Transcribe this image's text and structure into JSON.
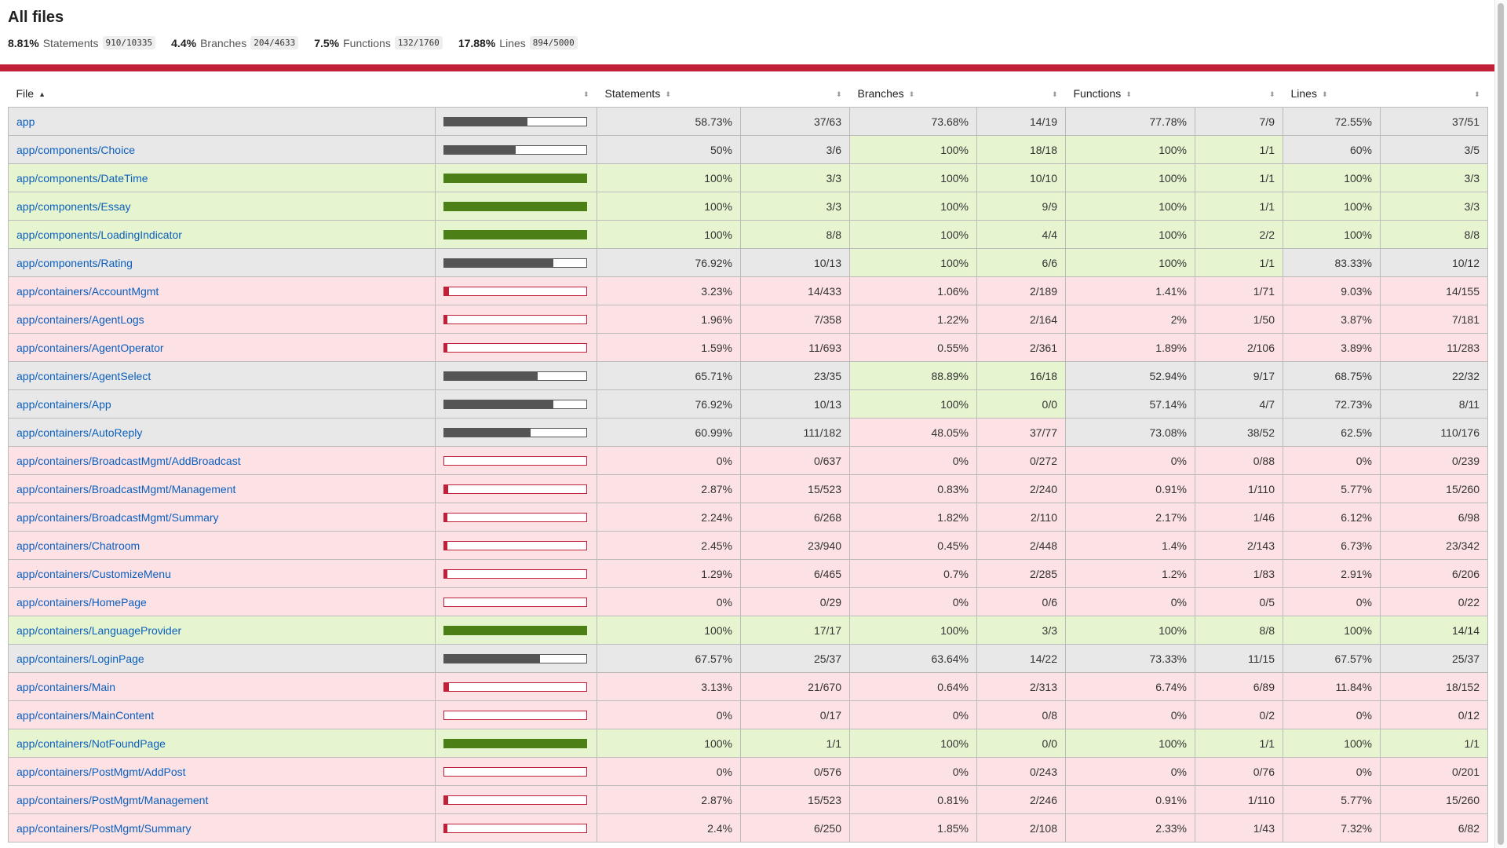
{
  "title": "All files",
  "summary": [
    {
      "pct": "8.81%",
      "label": "Statements",
      "frac": "910/10335"
    },
    {
      "pct": "4.4%",
      "label": "Branches",
      "frac": "204/4633"
    },
    {
      "pct": "7.5%",
      "label": "Functions",
      "frac": "132/1760"
    },
    {
      "pct": "17.88%",
      "label": "Lines",
      "frac": "894/5000"
    }
  ],
  "columns": {
    "file": "File",
    "statements": "Statements",
    "branches": "Branches",
    "functions": "Functions",
    "lines": "Lines"
  },
  "sort_icons": {
    "active": "▲",
    "inactive": "⬍"
  },
  "colors": {
    "high": "#e6f5d0",
    "medium": "#e8e8e8",
    "low": "#fce1e5",
    "status_line": "#c21f39",
    "link": "#0b5fbd"
  },
  "rows": [
    {
      "file": "app",
      "level": "medium",
      "fill": 58.73,
      "s": "58.73%",
      "sf": "37/63",
      "sl": "medium",
      "b": "73.68%",
      "bf": "14/19",
      "bl": "medium",
      "f": "77.78%",
      "ff": "7/9",
      "fl": "medium",
      "l": "72.55%",
      "lf": "37/51",
      "ll": "medium"
    },
    {
      "file": "app/components/Choice",
      "level": "medium",
      "fill": 50,
      "s": "50%",
      "sf": "3/6",
      "sl": "medium",
      "b": "100%",
      "bf": "18/18",
      "bl": "high",
      "f": "100%",
      "ff": "1/1",
      "fl": "high",
      "l": "60%",
      "lf": "3/5",
      "ll": "medium"
    },
    {
      "file": "app/components/DateTime",
      "level": "high",
      "fill": 100,
      "s": "100%",
      "sf": "3/3",
      "sl": "high",
      "b": "100%",
      "bf": "10/10",
      "bl": "high",
      "f": "100%",
      "ff": "1/1",
      "fl": "high",
      "l": "100%",
      "lf": "3/3",
      "ll": "high"
    },
    {
      "file": "app/components/Essay",
      "level": "high",
      "fill": 100,
      "s": "100%",
      "sf": "3/3",
      "sl": "high",
      "b": "100%",
      "bf": "9/9",
      "bl": "high",
      "f": "100%",
      "ff": "1/1",
      "fl": "high",
      "l": "100%",
      "lf": "3/3",
      "ll": "high"
    },
    {
      "file": "app/components/LoadingIndicator",
      "level": "high",
      "fill": 100,
      "s": "100%",
      "sf": "8/8",
      "sl": "high",
      "b": "100%",
      "bf": "4/4",
      "bl": "high",
      "f": "100%",
      "ff": "2/2",
      "fl": "high",
      "l": "100%",
      "lf": "8/8",
      "ll": "high"
    },
    {
      "file": "app/components/Rating",
      "level": "medium",
      "fill": 76.92,
      "s": "76.92%",
      "sf": "10/13",
      "sl": "medium",
      "b": "100%",
      "bf": "6/6",
      "bl": "high",
      "f": "100%",
      "ff": "1/1",
      "fl": "high",
      "l": "83.33%",
      "lf": "10/12",
      "ll": "medium"
    },
    {
      "file": "app/containers/AccountMgmt",
      "level": "low",
      "fill": 3.23,
      "s": "3.23%",
      "sf": "14/433",
      "sl": "low",
      "b": "1.06%",
      "bf": "2/189",
      "bl": "low",
      "f": "1.41%",
      "ff": "1/71",
      "fl": "low",
      "l": "9.03%",
      "lf": "14/155",
      "ll": "low"
    },
    {
      "file": "app/containers/AgentLogs",
      "level": "low",
      "fill": 1.96,
      "s": "1.96%",
      "sf": "7/358",
      "sl": "low",
      "b": "1.22%",
      "bf": "2/164",
      "bl": "low",
      "f": "2%",
      "ff": "1/50",
      "fl": "low",
      "l": "3.87%",
      "lf": "7/181",
      "ll": "low"
    },
    {
      "file": "app/containers/AgentOperator",
      "level": "low",
      "fill": 1.59,
      "s": "1.59%",
      "sf": "11/693",
      "sl": "low",
      "b": "0.55%",
      "bf": "2/361",
      "bl": "low",
      "f": "1.89%",
      "ff": "2/106",
      "fl": "low",
      "l": "3.89%",
      "lf": "11/283",
      "ll": "low"
    },
    {
      "file": "app/containers/AgentSelect",
      "level": "medium",
      "fill": 65.71,
      "s": "65.71%",
      "sf": "23/35",
      "sl": "medium",
      "b": "88.89%",
      "bf": "16/18",
      "bl": "high",
      "f": "52.94%",
      "ff": "9/17",
      "fl": "medium",
      "l": "68.75%",
      "lf": "22/32",
      "ll": "medium"
    },
    {
      "file": "app/containers/App",
      "level": "medium",
      "fill": 76.92,
      "s": "76.92%",
      "sf": "10/13",
      "sl": "medium",
      "b": "100%",
      "bf": "0/0",
      "bl": "high",
      "f": "57.14%",
      "ff": "4/7",
      "fl": "medium",
      "l": "72.73%",
      "lf": "8/11",
      "ll": "medium"
    },
    {
      "file": "app/containers/AutoReply",
      "level": "medium",
      "fill": 60.99,
      "s": "60.99%",
      "sf": "111/182",
      "sl": "medium",
      "b": "48.05%",
      "bf": "37/77",
      "bl": "low",
      "f": "73.08%",
      "ff": "38/52",
      "fl": "medium",
      "l": "62.5%",
      "lf": "110/176",
      "ll": "medium"
    },
    {
      "file": "app/containers/BroadcastMgmt/AddBroadcast",
      "level": "low",
      "fill": 0,
      "s": "0%",
      "sf": "0/637",
      "sl": "low",
      "b": "0%",
      "bf": "0/272",
      "bl": "low",
      "f": "0%",
      "ff": "0/88",
      "fl": "low",
      "l": "0%",
      "lf": "0/239",
      "ll": "low"
    },
    {
      "file": "app/containers/BroadcastMgmt/Management",
      "level": "low",
      "fill": 2.87,
      "s": "2.87%",
      "sf": "15/523",
      "sl": "low",
      "b": "0.83%",
      "bf": "2/240",
      "bl": "low",
      "f": "0.91%",
      "ff": "1/110",
      "fl": "low",
      "l": "5.77%",
      "lf": "15/260",
      "ll": "low"
    },
    {
      "file": "app/containers/BroadcastMgmt/Summary",
      "level": "low",
      "fill": 2.24,
      "s": "2.24%",
      "sf": "6/268",
      "sl": "low",
      "b": "1.82%",
      "bf": "2/110",
      "bl": "low",
      "f": "2.17%",
      "ff": "1/46",
      "fl": "low",
      "l": "6.12%",
      "lf": "6/98",
      "ll": "low"
    },
    {
      "file": "app/containers/Chatroom",
      "level": "low",
      "fill": 2.45,
      "s": "2.45%",
      "sf": "23/940",
      "sl": "low",
      "b": "0.45%",
      "bf": "2/448",
      "bl": "low",
      "f": "1.4%",
      "ff": "2/143",
      "fl": "low",
      "l": "6.73%",
      "lf": "23/342",
      "ll": "low"
    },
    {
      "file": "app/containers/CustomizeMenu",
      "level": "low",
      "fill": 1.29,
      "s": "1.29%",
      "sf": "6/465",
      "sl": "low",
      "b": "0.7%",
      "bf": "2/285",
      "bl": "low",
      "f": "1.2%",
      "ff": "1/83",
      "fl": "low",
      "l": "2.91%",
      "lf": "6/206",
      "ll": "low"
    },
    {
      "file": "app/containers/HomePage",
      "level": "low",
      "fill": 0,
      "s": "0%",
      "sf": "0/29",
      "sl": "low",
      "b": "0%",
      "bf": "0/6",
      "bl": "low",
      "f": "0%",
      "ff": "0/5",
      "fl": "low",
      "l": "0%",
      "lf": "0/22",
      "ll": "low"
    },
    {
      "file": "app/containers/LanguageProvider",
      "level": "high",
      "fill": 100,
      "s": "100%",
      "sf": "17/17",
      "sl": "high",
      "b": "100%",
      "bf": "3/3",
      "bl": "high",
      "f": "100%",
      "ff": "8/8",
      "fl": "high",
      "l": "100%",
      "lf": "14/14",
      "ll": "high"
    },
    {
      "file": "app/containers/LoginPage",
      "level": "medium",
      "fill": 67.57,
      "s": "67.57%",
      "sf": "25/37",
      "sl": "medium",
      "b": "63.64%",
      "bf": "14/22",
      "bl": "medium",
      "f": "73.33%",
      "ff": "11/15",
      "fl": "medium",
      "l": "67.57%",
      "lf": "25/37",
      "ll": "medium"
    },
    {
      "file": "app/containers/Main",
      "level": "low",
      "fill": 3.13,
      "s": "3.13%",
      "sf": "21/670",
      "sl": "low",
      "b": "0.64%",
      "bf": "2/313",
      "bl": "low",
      "f": "6.74%",
      "ff": "6/89",
      "fl": "low",
      "l": "11.84%",
      "lf": "18/152",
      "ll": "low"
    },
    {
      "file": "app/containers/MainContent",
      "level": "low",
      "fill": 0,
      "s": "0%",
      "sf": "0/17",
      "sl": "low",
      "b": "0%",
      "bf": "0/8",
      "bl": "low",
      "f": "0%",
      "ff": "0/2",
      "fl": "low",
      "l": "0%",
      "lf": "0/12",
      "ll": "low"
    },
    {
      "file": "app/containers/NotFoundPage",
      "level": "high",
      "fill": 100,
      "s": "100%",
      "sf": "1/1",
      "sl": "high",
      "b": "100%",
      "bf": "0/0",
      "bl": "high",
      "f": "100%",
      "ff": "1/1",
      "fl": "high",
      "l": "100%",
      "lf": "1/1",
      "ll": "high"
    },
    {
      "file": "app/containers/PostMgmt/AddPost",
      "level": "low",
      "fill": 0,
      "s": "0%",
      "sf": "0/576",
      "sl": "low",
      "b": "0%",
      "bf": "0/243",
      "bl": "low",
      "f": "0%",
      "ff": "0/76",
      "fl": "low",
      "l": "0%",
      "lf": "0/201",
      "ll": "low"
    },
    {
      "file": "app/containers/PostMgmt/Management",
      "level": "low",
      "fill": 2.87,
      "s": "2.87%",
      "sf": "15/523",
      "sl": "low",
      "b": "0.81%",
      "bf": "2/246",
      "bl": "low",
      "f": "0.91%",
      "ff": "1/110",
      "fl": "low",
      "l": "5.77%",
      "lf": "15/260",
      "ll": "low"
    },
    {
      "file": "app/containers/PostMgmt/Summary",
      "level": "low",
      "fill": 2.4,
      "s": "2.4%",
      "sf": "6/250",
      "sl": "low",
      "b": "1.85%",
      "bf": "2/108",
      "bl": "low",
      "f": "2.33%",
      "ff": "1/43",
      "fl": "low",
      "l": "7.32%",
      "lf": "6/82",
      "ll": "low"
    }
  ]
}
